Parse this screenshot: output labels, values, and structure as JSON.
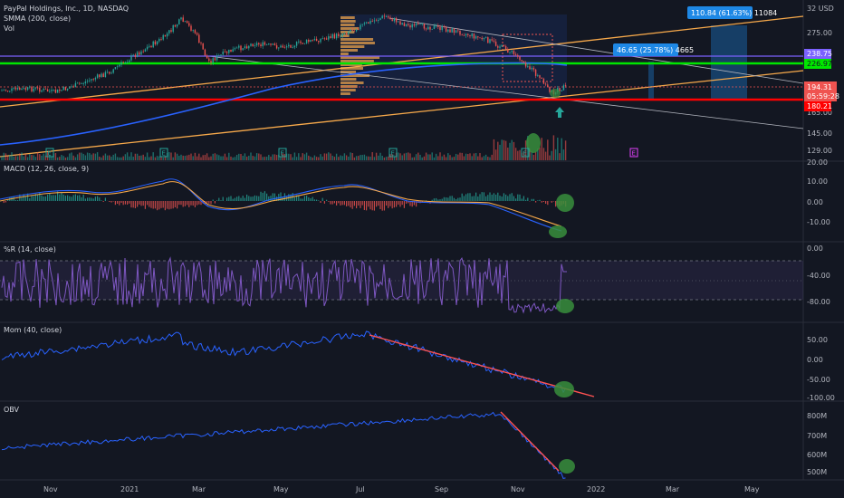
{
  "colors": {
    "background": "#131722",
    "up": "#26a69a",
    "down": "#ef5350",
    "smma": "#2962ff",
    "green_line": "#00e600",
    "red_line": "#ff0000",
    "orange_line": "#f7a94b",
    "purple_line": "#7b61ff",
    "indicator": "#7e57c2",
    "mom": "#2962ff",
    "marker": "#388e3c"
  },
  "header": {
    "symbol_line": "PayPal Holdings, Inc., 1D, NASDAQ",
    "smma_label": "SMMA (200, close)",
    "vol_label": "Vol"
  },
  "projection_boxes": {
    "large": "110.84 (61.63%) 11084",
    "small": "46.65 (25.78%) 4665"
  },
  "price_axis": {
    "ticks": [
      "32 USD",
      "275.00",
      "165.00",
      "145.00",
      "129.00"
    ],
    "tags": {
      "purple": "238.75",
      "green": "226.97",
      "current": "194.31",
      "countdown": "05:59:28",
      "red": "180.21"
    }
  },
  "panes": {
    "macd": {
      "title": "MACD (12, 26, close, 9)",
      "ticks": [
        "20.00",
        "10.00",
        "0.00",
        "-10.00"
      ]
    },
    "williams": {
      "title": "%R (14, close)",
      "ticks": [
        "0.00",
        "-40.00",
        "-80.00"
      ]
    },
    "mom": {
      "title": "Mom (40, close)",
      "ticks": [
        "50.00",
        "0.00",
        "-50.00",
        "-100.00"
      ]
    },
    "obv": {
      "title": "OBV",
      "ticks": [
        "800M",
        "700M",
        "600M",
        "500M"
      ]
    }
  },
  "time_axis": [
    "Nov",
    "2021",
    "Mar",
    "May",
    "Jul",
    "Sep",
    "Nov",
    "2022",
    "Mar",
    "May"
  ],
  "event_markers": [
    "E",
    "E",
    "E",
    "E",
    "E",
    "E",
    "E",
    "E"
  ]
}
